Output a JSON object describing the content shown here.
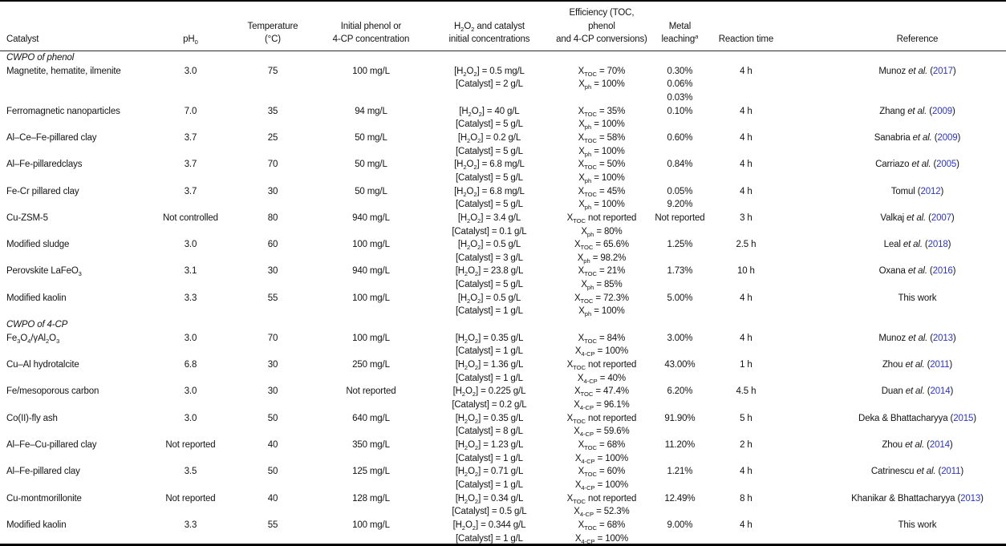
{
  "colors": {
    "link_blue": "#2b35cc",
    "text": "#141414",
    "rule": "#000000"
  },
  "table": {
    "columns": [
      {
        "id": "catalyst",
        "label": "Catalyst"
      },
      {
        "id": "ph",
        "label": "pH{0}"
      },
      {
        "id": "temperature",
        "label": "Temperature\n(°C)"
      },
      {
        "id": "concentration",
        "label": "Initial phenol or\n4-CP concentration"
      },
      {
        "id": "reagents",
        "label": "H{2}O{2} and catalyst\ninitial concentrations"
      },
      {
        "id": "efficiency",
        "label": "Efficiency (TOC, phenol\nand 4-CP conversions)"
      },
      {
        "id": "metal_leaching",
        "label": "Metal leaching^{a}"
      },
      {
        "id": "reaction_time",
        "label": "Reaction time"
      },
      {
        "id": "reference",
        "label": "Reference"
      }
    ],
    "rows": [
      {
        "section": "CWPO of phenol"
      },
      {
        "catalyst": "Magnetite, hematite, ilmenite",
        "ph": "3.0",
        "temperature": "75",
        "concentration": "100 mg/L",
        "reagents": [
          "[H{2}O{2}] = 0.5 mg/L",
          "[Catalyst] = 2 g/L"
        ],
        "efficiency": [
          "X{TOC} = 70%",
          "X{ph} = 100%"
        ],
        "metal_leaching": [
          "0.30%",
          "0.06%",
          "0.03%"
        ],
        "reaction_time": "4 h",
        "reference": {
          "authors": "Munoz",
          "etal": true,
          "year": "2017"
        }
      },
      {
        "catalyst": "Ferromagnetic nanoparticles",
        "ph": "7.0",
        "temperature": "35",
        "concentration": "94 mg/L",
        "reagents": [
          "[H{2}O{2}] = 40 g/L",
          "[Catalyst] = 5 g/L"
        ],
        "efficiency": [
          "X{TOC} = 35%",
          "X{ph} = 100%"
        ],
        "metal_leaching": [
          "0.10%"
        ],
        "reaction_time": "4 h",
        "reference": {
          "authors": "Zhang",
          "etal": true,
          "year": "2009"
        }
      },
      {
        "catalyst": "Al–Ce–Fe-pillared clay",
        "ph": "3.7",
        "temperature": "25",
        "concentration": "50 mg/L",
        "reagents": [
          "[H{2}O{2}] = 0.2 g/L",
          "[Catalyst] = 5 g/L"
        ],
        "efficiency": [
          "X{TOC} = 58%",
          "X{ph} = 100%"
        ],
        "metal_leaching": [
          "0.60%"
        ],
        "reaction_time": "4 h",
        "reference": {
          "authors": "Sanabria",
          "etal": true,
          "year": "2009"
        }
      },
      {
        "catalyst": "Al–Fe-pillaredclays",
        "ph": "3.7",
        "temperature": "70",
        "concentration": "50 mg/L",
        "reagents": [
          "[H{2}O{2}] = 6.8 mg/L",
          "[Catalyst] = 5 g/L"
        ],
        "efficiency": [
          "X{TOC} = 50%",
          "X{ph} = 100%"
        ],
        "metal_leaching": [
          "0.84%"
        ],
        "reaction_time": "4 h",
        "reference": {
          "authors": "Carriazo",
          "etal": true,
          "year": "2005"
        }
      },
      {
        "catalyst": "Fe-Cr pillared clay",
        "ph": "3.7",
        "temperature": "30",
        "concentration": "50 mg/L",
        "reagents": [
          "[H{2}O{2}] = 6.8 mg/L",
          "[Catalyst] = 5 g/L"
        ],
        "efficiency": [
          "X{TOC} = 45%",
          "X{ph} = 100%"
        ],
        "metal_leaching": [
          "0.05%",
          "9.20%"
        ],
        "reaction_time": "4 h",
        "reference": {
          "authors": "Tomul",
          "etal": false,
          "year": "2012"
        }
      },
      {
        "catalyst": "Cu-ZSM-5",
        "ph": "Not controlled",
        "temperature": "80",
        "concentration": "940 mg/L",
        "reagents": [
          "[H{2}O{2}] = 3.4 g/L",
          "[Catalyst] = 0.1 g/L"
        ],
        "efficiency": [
          "X{TOC} not reported",
          "X{ph} = 80%"
        ],
        "metal_leaching": [
          "Not reported"
        ],
        "reaction_time": "3 h",
        "reference": {
          "authors": "Valkaj",
          "etal": true,
          "year": "2007"
        }
      },
      {
        "catalyst": "Modified sludge",
        "ph": "3.0",
        "temperature": "60",
        "concentration": "100 mg/L",
        "reagents": [
          "[H{2}O{2}] = 0.5 g/L",
          "[Catalyst] = 3 g/L"
        ],
        "efficiency": [
          "X{TOC} = 65.6%",
          "X{ph} = 98.2%"
        ],
        "metal_leaching": [
          "1.25%"
        ],
        "reaction_time": "2.5 h",
        "reference": {
          "authors": "Leal",
          "etal": true,
          "year": "2018"
        }
      },
      {
        "catalyst": "Perovskite LaFeO{3}",
        "ph": "3.1",
        "temperature": "30",
        "concentration": "940 mg/L",
        "reagents": [
          "[H{2}O{2}] = 23.8 g/L",
          "[Catalyst] = 5 g/L"
        ],
        "efficiency": [
          "X{TOC} = 21%",
          "X{ph} = 85%"
        ],
        "metal_leaching": [
          "1.73%"
        ],
        "reaction_time": "10 h",
        "reference": {
          "authors": "Oxana",
          "etal": true,
          "year": "2016"
        }
      },
      {
        "catalyst": "Modified kaolin",
        "ph": "3.3",
        "temperature": "55",
        "concentration": "100 mg/L",
        "reagents": [
          "[H{2}O{2}] = 0.5 g/L",
          "[Catalyst] = 1 g/L"
        ],
        "efficiency": [
          "X{TOC} = 72.3%",
          "X{ph} = 100%"
        ],
        "metal_leaching": [
          "5.00%"
        ],
        "reaction_time": "4 h",
        "reference": {
          "text": "This work"
        }
      },
      {
        "section": "CWPO of 4-CP"
      },
      {
        "catalyst": "Fe{3}O{4}/γAl{2}O{3}",
        "ph": "3.0",
        "temperature": "70",
        "concentration": "100 mg/L",
        "reagents": [
          "[H{2}O{2}] = 0.35 g/L",
          "[Catalyst] = 1 g/L"
        ],
        "efficiency": [
          "X{TOC} = 84%",
          "X{4-CP} = 100%"
        ],
        "metal_leaching": [
          "3.00%"
        ],
        "reaction_time": "4 h",
        "reference": {
          "authors": "Munoz",
          "etal": true,
          "year": "2013"
        }
      },
      {
        "catalyst": "Cu–Al hydrotalcite",
        "ph": "6.8",
        "temperature": "30",
        "concentration": "250 mg/L",
        "reagents": [
          "[H{2}O{2}] = 1.36 g/L",
          "[Catalyst] = 1 g/L"
        ],
        "efficiency": [
          "X{TOC} not reported",
          "X{4-CP} = 40%"
        ],
        "metal_leaching": [
          "43.00%"
        ],
        "reaction_time": "1 h",
        "reference": {
          "authors": "Zhou",
          "etal": true,
          "year": "2011"
        }
      },
      {
        "catalyst": "Fe/mesoporous carbon",
        "ph": "3.0",
        "temperature": "30",
        "concentration": "Not reported",
        "reagents": [
          "[H{2}O{2}] = 0.225 g/L",
          "[Catalyst] = 0.2 g/L"
        ],
        "efficiency": [
          "X{TOC} = 47.4%",
          "X{4-CP} = 96.1%"
        ],
        "metal_leaching": [
          "6.20%"
        ],
        "reaction_time": "4.5 h",
        "reference": {
          "authors": "Duan",
          "etal": true,
          "year": "2014"
        }
      },
      {
        "catalyst": "Co(II)-fly ash",
        "ph": "3.0",
        "temperature": "50",
        "concentration": "640 mg/L",
        "reagents": [
          "[H{2}O{2}] = 0.35 g/L",
          "[Catalyst] = 8 g/L"
        ],
        "efficiency": [
          "X{TOC} not reported",
          "X{4-CP} = 59.6%"
        ],
        "metal_leaching": [
          "91.90%"
        ],
        "reaction_time": "5 h",
        "reference": {
          "authors": "Deka & Bhattacharyya",
          "etal": false,
          "year": "2015"
        }
      },
      {
        "catalyst": "Al–Fe–Cu-pillared clay",
        "ph": "Not reported",
        "temperature": "40",
        "concentration": "350 mg/L",
        "reagents": [
          "[H{2}O{2}] = 1.23 g/L",
          "[Catalyst] = 1 g/L"
        ],
        "efficiency": [
          "X{TOC} = 68%",
          "X{4-CP} = 100%"
        ],
        "metal_leaching": [
          "11.20%"
        ],
        "reaction_time": "2 h",
        "reference": {
          "authors": "Zhou",
          "etal": true,
          "year": "2014"
        }
      },
      {
        "catalyst": "Al–Fe-pillared clay",
        "ph": "3.5",
        "temperature": "50",
        "concentration": "125 mg/L",
        "reagents": [
          "[H{2}O{2}] = 0.71 g/L",
          "[Catalyst] = 1 g/L"
        ],
        "efficiency": [
          "X{TOC} = 60%",
          "X{4-CP} = 100%"
        ],
        "metal_leaching": [
          "1.21%"
        ],
        "reaction_time": "4 h",
        "reference": {
          "authors": "Catrinescu",
          "etal": true,
          "year": "2011"
        }
      },
      {
        "catalyst": "Cu-montmorillonite",
        "ph": "Not reported",
        "temperature": "40",
        "concentration": "128 mg/L",
        "reagents": [
          "[H{2}O{2}] = 0.34 g/L",
          "[Catalyst] = 0.5 g/L"
        ],
        "efficiency": [
          "X{TOC} not reported",
          "X{4-CP} = 52.3%"
        ],
        "metal_leaching": [
          "12.49%"
        ],
        "reaction_time": "8 h",
        "reference": {
          "authors": "Khanikar & Bhattacharyya",
          "etal": false,
          "year": "2013"
        }
      },
      {
        "catalyst": "Modified kaolin",
        "ph": "3.3",
        "temperature": "55",
        "concentration": "100 mg/L",
        "reagents": [
          "[H{2}O{2}] = 0.344 g/L",
          "[Catalyst] = 1 g/L"
        ],
        "efficiency": [
          "X{TOC} = 68%",
          "X{4-CP} = 100%"
        ],
        "metal_leaching": [
          "9.00%"
        ],
        "reaction_time": "4 h",
        "reference": {
          "text": "This work"
        }
      }
    ]
  }
}
